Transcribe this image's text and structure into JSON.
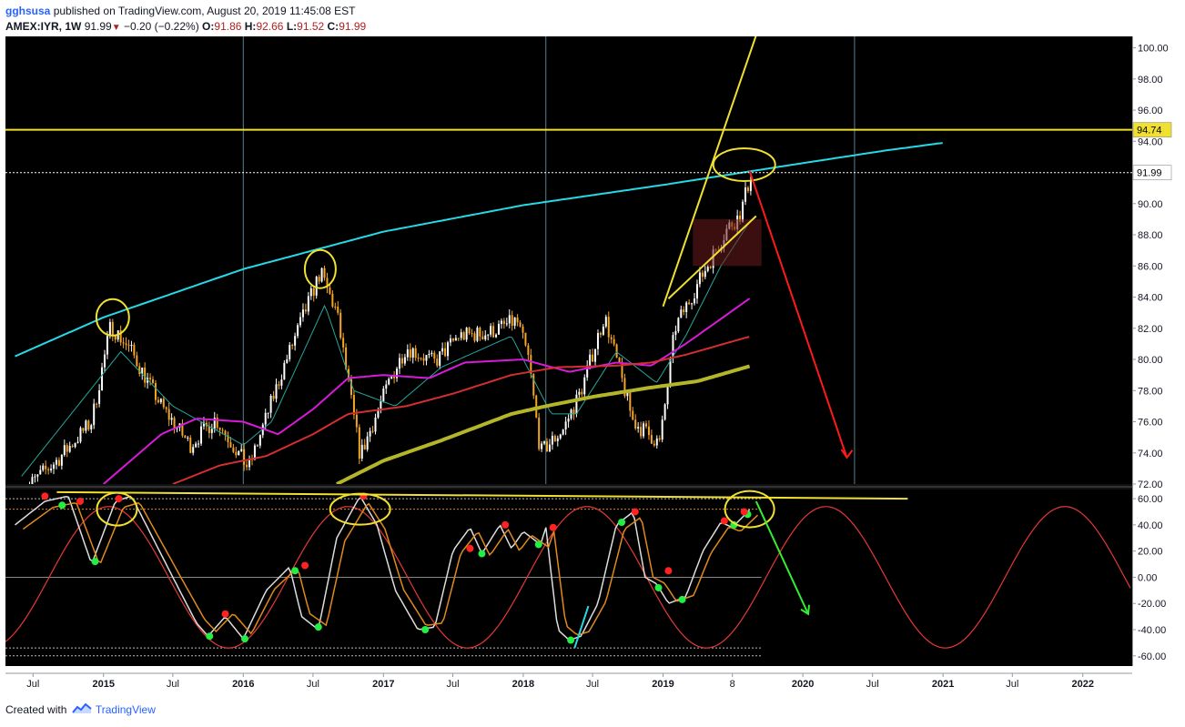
{
  "header": {
    "user": "gghsusa",
    "published_text": "published on TradingView.com, August 20, 2019 11:45:08 EST",
    "symbol": "AMEX:IYR, 1W",
    "last": "91.99",
    "change": "−0.20 (−0.22%)",
    "o_label": "O:",
    "o": "91.86",
    "h_label": "H:",
    "h": "92.66",
    "l_label": "L:",
    "l": "91.52",
    "c_label": "C:",
    "c": "91.99"
  },
  "footer": {
    "created_with": "Created with",
    "brand": "TradingView"
  },
  "colors": {
    "background": "#000000",
    "candle_up": "#ffffff",
    "candle_down": "#f5a623",
    "ema_short": "#26a69a",
    "ma_magenta": "#d81bd8",
    "ma_red": "#d32f2f",
    "ma_olive": "#b5b52a",
    "curve_cyan": "#26d9e6",
    "trend_yellow": "#f0e030",
    "arrow_red": "#ff1a1a",
    "arrow_green": "#33ee33",
    "osc_red": "#e53935",
    "osc_white": "#dddddd",
    "osc_orange": "#e08a1c"
  },
  "chart_data": [
    {
      "type": "candlestick",
      "symbol": "AMEX:IYR",
      "interval": "1W",
      "y_ticks": [
        "100.00",
        "98.00",
        "96.00",
        "94.00",
        "92.00",
        "90.00",
        "88.00",
        "86.00",
        "84.00",
        "82.00",
        "80.00",
        "78.00",
        "76.00",
        "74.00",
        "72.00"
      ],
      "ylim": [
        72,
        100.5
      ],
      "price_labels": {
        "resistance": "94.74",
        "last": "91.99"
      },
      "x_ticks": [
        "Jul",
        "2015",
        "Jul",
        "2016",
        "Jul",
        "2017",
        "Jul",
        "2018",
        "Jul",
        "2019",
        "8",
        "2020",
        "Jul",
        "2021",
        "Jul",
        "2022"
      ],
      "anchors": [
        [
          "2014-06-01",
          71.5
        ],
        [
          "2014-09-01",
          73.5
        ],
        [
          "2014-12-01",
          76
        ],
        [
          "2015-01-20",
          82.2
        ],
        [
          "2015-03-15",
          80.5
        ],
        [
          "2015-06-01",
          77
        ],
        [
          "2015-08-15",
          74.5
        ],
        [
          "2015-10-20",
          76.2
        ],
        [
          "2016-01-15",
          73
        ],
        [
          "2016-04-15",
          79.5
        ],
        [
          "2016-07-20",
          85.6
        ],
        [
          "2016-09-01",
          83
        ],
        [
          "2016-11-01",
          73.8
        ],
        [
          "2017-01-15",
          78.5
        ],
        [
          "2017-03-01",
          80.8
        ],
        [
          "2017-05-15",
          79.8
        ],
        [
          "2017-07-15",
          81.5
        ],
        [
          "2017-10-01",
          81.7
        ],
        [
          "2017-12-15",
          82.5
        ],
        [
          "2018-01-15",
          80
        ],
        [
          "2018-02-15",
          74
        ],
        [
          "2018-04-15",
          75.5
        ],
        [
          "2018-06-01",
          78
        ],
        [
          "2018-08-01",
          82.8
        ],
        [
          "2018-10-15",
          76
        ],
        [
          "2018-12-24",
          74.6
        ],
        [
          "2019-02-01",
          82
        ],
        [
          "2019-04-15",
          85.5
        ],
        [
          "2019-06-20",
          88.5
        ],
        [
          "2019-07-20",
          89.2
        ],
        [
          "2019-08-20",
          91.99
        ]
      ],
      "ema_short": [
        [
          "2014-06-01",
          72.5
        ],
        [
          "2015-02-15",
          80.5
        ],
        [
          "2015-07-01",
          77
        ],
        [
          "2016-01-01",
          74.5
        ],
        [
          "2016-03-15",
          76
        ],
        [
          "2016-08-01",
          83.5
        ],
        [
          "2016-10-15",
          78
        ],
        [
          "2017-02-01",
          77
        ],
        [
          "2017-06-01",
          79.5
        ],
        [
          "2017-12-01",
          81.5
        ],
        [
          "2018-03-15",
          76.5
        ],
        [
          "2018-05-20",
          76.5
        ],
        [
          "2018-09-01",
          80.5
        ],
        [
          "2018-12-15",
          78.5
        ],
        [
          "2019-03-01",
          81.5
        ],
        [
          "2019-06-01",
          86
        ],
        [
          "2019-08-20",
          89
        ]
      ],
      "ma_magenta": [
        [
          "2015-01-01",
          72
        ],
        [
          "2015-06-01",
          75.2
        ],
        [
          "2015-09-01",
          76.2
        ],
        [
          "2016-01-01",
          76
        ],
        [
          "2016-04-01",
          75.2
        ],
        [
          "2016-07-01",
          76.8
        ],
        [
          "2016-10-01",
          78.8
        ],
        [
          "2017-01-01",
          79
        ],
        [
          "2017-05-01",
          78.8
        ],
        [
          "2017-08-01",
          79.8
        ],
        [
          "2018-01-01",
          80
        ],
        [
          "2018-05-01",
          79.2
        ],
        [
          "2018-09-01",
          79.8
        ],
        [
          "2018-12-01",
          79.6
        ],
        [
          "2019-03-01",
          81
        ],
        [
          "2019-06-01",
          82.6
        ],
        [
          "2019-08-20",
          84
        ]
      ],
      "ma_red": [
        [
          "2015-07-01",
          72
        ],
        [
          "2015-11-01",
          73.2
        ],
        [
          "2016-03-01",
          73.8
        ],
        [
          "2016-07-01",
          75.2
        ],
        [
          "2016-10-01",
          76.5
        ],
        [
          "2017-03-01",
          77
        ],
        [
          "2017-07-01",
          77.8
        ],
        [
          "2017-12-01",
          79
        ],
        [
          "2018-04-01",
          79.5
        ],
        [
          "2018-09-01",
          79.6
        ],
        [
          "2018-12-01",
          79.8
        ],
        [
          "2019-03-01",
          80.3
        ],
        [
          "2019-08-20",
          81.5
        ]
      ],
      "ma_olive": [
        [
          "2016-09-01",
          72
        ],
        [
          "2017-01-01",
          73.5
        ],
        [
          "2017-06-01",
          74.8
        ],
        [
          "2017-12-01",
          76.5
        ],
        [
          "2018-03-01",
          77
        ],
        [
          "2018-07-01",
          77.6
        ],
        [
          "2018-12-01",
          78.2
        ],
        [
          "2019-04-01",
          78.6
        ],
        [
          "2019-08-20",
          79.6
        ]
      ],
      "curve_cyan": [
        [
          "2014-05-15",
          80.2
        ],
        [
          "2015-01-01",
          82.7
        ],
        [
          "2016-01-01",
          85.8
        ],
        [
          "2017-01-01",
          88.2
        ],
        [
          "2018-01-01",
          89.9
        ],
        [
          "2019-01-01",
          91.2
        ],
        [
          "2020-01-01",
          92.6
        ],
        [
          "2020-08-01",
          93.4
        ],
        [
          "2021-01-01",
          93.9
        ]
      ],
      "annotations": [
        "yellow resistance line at 94.74",
        "yellow wedge trendlines",
        "cyan arc",
        "yellow circles on 2015, 2016, 2019 tops",
        "red box and red down arrow"
      ]
    },
    {
      "type": "oscillator",
      "y_ticks": [
        "60.00",
        "40.00",
        "20.00",
        "0.00",
        "-20.00",
        "-40.00",
        "-60.00"
      ],
      "ylim": [
        -65,
        67
      ],
      "stoch_k": [
        [
          "2014-05-15",
          40
        ],
        [
          "2014-08-01",
          58
        ],
        [
          "2014-10-01",
          62
        ],
        [
          "2014-12-01",
          10
        ],
        [
          "2015-02-01",
          58
        ],
        [
          "2015-03-15",
          62
        ],
        [
          "2015-05-01",
          35
        ],
        [
          "2015-07-01",
          0
        ],
        [
          "2015-09-01",
          -35
        ],
        [
          "2015-10-01",
          -45
        ],
        [
          "2015-11-15",
          -30
        ],
        [
          "2016-01-01",
          -47
        ],
        [
          "2016-03-01",
          -10
        ],
        [
          "2016-05-01",
          8
        ],
        [
          "2016-06-01",
          -30
        ],
        [
          "2016-07-15",
          -40
        ],
        [
          "2016-09-01",
          30
        ],
        [
          "2016-11-01",
          62
        ],
        [
          "2016-12-15",
          40
        ],
        [
          "2017-02-01",
          -10
        ],
        [
          "2017-04-01",
          -40
        ],
        [
          "2017-05-15",
          -38
        ],
        [
          "2017-07-01",
          20
        ],
        [
          "2017-08-15",
          38
        ],
        [
          "2017-09-15",
          18
        ],
        [
          "2017-11-01",
          40
        ],
        [
          "2017-12-01",
          22
        ],
        [
          "2018-01-01",
          35
        ],
        [
          "2018-02-15",
          25
        ],
        [
          "2018-03-01",
          38
        ],
        [
          "2018-04-01",
          -40
        ],
        [
          "2018-05-01",
          -48
        ],
        [
          "2018-06-01",
          -45
        ],
        [
          "2018-07-15",
          -20
        ],
        [
          "2018-09-01",
          40
        ],
        [
          "2018-10-15",
          50
        ],
        [
          "2018-11-15",
          0
        ],
        [
          "2018-12-15",
          -5
        ],
        [
          "2019-01-15",
          -20
        ],
        [
          "2019-03-01",
          -15
        ],
        [
          "2019-04-15",
          20
        ],
        [
          "2019-06-01",
          42
        ],
        [
          "2019-07-01",
          38
        ],
        [
          "2019-08-20",
          53
        ]
      ],
      "cycle_red": {
        "amplitude": 54,
        "period_months": 20.5,
        "peak": "2015-01-15"
      },
      "annotations": [
        "yellow near-flat line at ~62",
        "yellow circles on 2015, 2016, 2019 highs",
        "green down arrow"
      ]
    }
  ]
}
